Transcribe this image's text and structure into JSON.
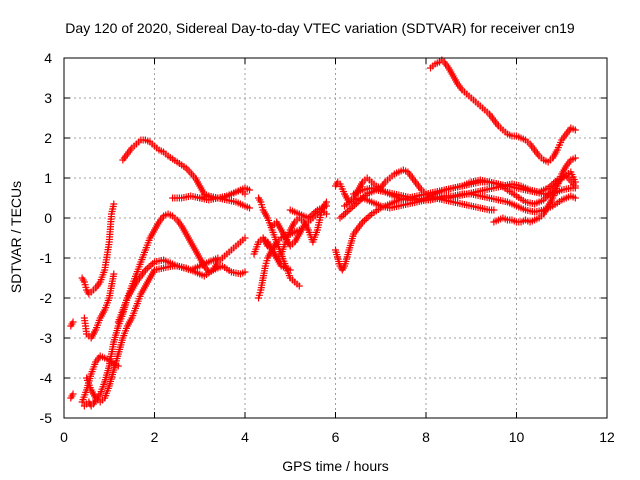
{
  "chart_data": {
    "type": "scatter",
    "title": "Day 120 of 2020, Sidereal Day-to-day VTEC variation (SDTVAR) for receiver cn19",
    "xlabel": "GPS time / hours",
    "ylabel": "SDTVAR / TECUs",
    "xlim": [
      0,
      12
    ],
    "ylim": [
      -5,
      4
    ],
    "xticks": [
      0,
      2,
      4,
      6,
      8,
      10,
      12
    ],
    "yticks": [
      -5,
      -4,
      -3,
      -2,
      -1,
      0,
      1,
      2,
      3,
      4
    ],
    "grid": true,
    "legend": "none",
    "marker": "plus",
    "color": "#ff0000",
    "series": [
      {
        "x": [
          0.15,
          0.2
        ],
        "y": [
          -2.7,
          -2.6
        ]
      },
      {
        "x": [
          0.15,
          0.2
        ],
        "y": [
          -4.5,
          -4.4
        ]
      },
      {
        "x": [
          0.4,
          0.45,
          0.5,
          0.55,
          0.6,
          0.7,
          0.8,
          0.9,
          1.0,
          1.05,
          1.1
        ],
        "y": [
          -1.5,
          -1.6,
          -1.8,
          -1.9,
          -1.85,
          -1.75,
          -1.6,
          -1.3,
          -0.6,
          0.1,
          0.35
        ]
      },
      {
        "x": [
          0.45,
          0.5,
          0.6,
          0.7,
          0.8,
          0.9,
          1.0,
          1.05,
          1.1
        ],
        "y": [
          -2.5,
          -2.9,
          -3.0,
          -2.8,
          -2.5,
          -2.3,
          -2.0,
          -1.7,
          -1.4
        ]
      },
      {
        "x": [
          0.4,
          0.5,
          0.6,
          0.7,
          0.8,
          0.9,
          1.0,
          1.05,
          1.1,
          1.2
        ],
        "y": [
          -4.6,
          -4.3,
          -3.9,
          -3.6,
          -3.45,
          -3.5,
          -3.55,
          -3.6,
          -3.65,
          -3.7
        ]
      },
      {
        "x": [
          0.45,
          0.55,
          0.6,
          0.65,
          0.7,
          0.8,
          0.9,
          1.0,
          1.1,
          1.2,
          1.3,
          1.4,
          1.5,
          1.6,
          1.8,
          2.0,
          2.2,
          2.5,
          2.8,
          3.0,
          3.2,
          3.4
        ],
        "y": [
          -4.7,
          -4.6,
          -4.7,
          -4.65,
          -4.55,
          -4.4,
          -4.1,
          -3.7,
          -3.1,
          -2.7,
          -2.4,
          -2.0,
          -1.8,
          -1.6,
          -1.3,
          -1.1,
          -1.05,
          -1.2,
          -1.3,
          -1.2,
          -1.1,
          -1.0
        ]
      },
      {
        "x": [
          0.5,
          0.6,
          0.7,
          0.8,
          0.9,
          1.0,
          1.1,
          1.2,
          1.3,
          1.4,
          1.5,
          1.6,
          1.7,
          1.8,
          1.9,
          2.0,
          2.2,
          2.4,
          2.5,
          2.7,
          2.9,
          3.1,
          3.3,
          3.5,
          3.7,
          3.9,
          4.0
        ],
        "y": [
          -4.0,
          -4.3,
          -4.5,
          -4.6,
          -4.5,
          -4.2,
          -3.8,
          -3.4,
          -3.0,
          -2.7,
          -2.5,
          -2.2,
          -1.9,
          -1.7,
          -1.5,
          -1.3,
          -1.25,
          -1.2,
          -1.2,
          -1.25,
          -1.35,
          -1.45,
          -1.3,
          -1.2,
          -1.35,
          -1.4,
          -1.35
        ]
      },
      {
        "x": [
          1.3,
          1.4,
          1.5,
          1.6,
          1.7,
          1.8,
          1.9,
          2.0,
          2.1,
          2.2,
          2.3,
          2.5,
          2.7,
          2.9,
          3.0,
          3.1,
          3.3,
          3.5,
          3.7,
          3.9,
          4.0
        ],
        "y": [
          1.45,
          1.6,
          1.75,
          1.85,
          1.95,
          1.95,
          1.9,
          1.8,
          1.7,
          1.65,
          1.55,
          1.4,
          1.25,
          1.0,
          0.8,
          0.6,
          0.5,
          0.5,
          0.6,
          0.7,
          0.6
        ]
      },
      {
        "x": [
          1.2,
          1.3,
          1.4,
          1.5,
          1.6,
          1.7,
          1.8,
          1.9,
          2.0,
          2.1,
          2.2,
          2.3,
          2.4,
          2.5,
          2.6,
          2.7,
          2.8,
          2.9,
          3.0,
          3.1,
          3.2,
          3.3,
          3.4,
          3.5,
          3.6,
          3.7,
          3.8,
          3.9,
          4.0
        ],
        "y": [
          -2.6,
          -2.3,
          -2.0,
          -1.7,
          -1.4,
          -1.1,
          -0.8,
          -0.5,
          -0.3,
          -0.1,
          0.05,
          0.1,
          0.05,
          -0.05,
          -0.2,
          -0.4,
          -0.6,
          -0.8,
          -1.0,
          -1.2,
          -1.35,
          -1.3,
          -1.1,
          -1.0,
          -0.9,
          -0.8,
          -0.7,
          -0.6,
          -0.5
        ]
      },
      {
        "x": [
          2.4,
          2.6,
          2.8,
          3.0,
          3.2,
          3.4,
          3.6,
          3.8,
          4.0,
          4.1
        ],
        "y": [
          0.5,
          0.5,
          0.55,
          0.5,
          0.45,
          0.5,
          0.55,
          0.65,
          0.75,
          0.7
        ]
      },
      {
        "x": [
          3.0,
          3.2,
          3.4,
          3.6,
          3.8,
          4.0,
          4.1
        ],
        "y": [
          0.5,
          0.55,
          0.5,
          0.45,
          0.4,
          0.3,
          0.25
        ]
      },
      {
        "x": [
          4.3,
          4.35,
          4.4,
          4.45,
          4.5,
          4.6,
          4.7,
          4.8,
          4.9,
          5.0,
          5.1,
          5.2
        ],
        "y": [
          -2.0,
          -1.8,
          -1.5,
          -1.2,
          -1.0,
          -0.8,
          -0.6,
          -0.5,
          -0.45,
          -0.4,
          -0.35,
          -0.3
        ]
      },
      {
        "x": [
          4.3,
          4.35,
          4.4,
          4.5,
          4.6,
          4.7,
          4.8,
          4.9,
          5.0,
          5.1,
          5.2
        ],
        "y": [
          0.5,
          0.4,
          0.2,
          0.0,
          -0.3,
          -0.6,
          -0.9,
          -1.2,
          -1.5,
          -1.6,
          -1.7
        ]
      },
      {
        "x": [
          4.4,
          4.5,
          4.6,
          4.7,
          4.8,
          4.9,
          5.0,
          5.1,
          5.2,
          5.3,
          5.4,
          5.5,
          5.6,
          5.7,
          5.8
        ],
        "y": [
          -0.5,
          -0.6,
          -0.8,
          -1.0,
          -0.9,
          -0.6,
          -0.3,
          -0.1,
          0.0,
          -0.1,
          -0.3,
          -0.6,
          -0.3,
          0.2,
          0.4
        ]
      },
      {
        "x": [
          4.6,
          4.7,
          4.8,
          4.9,
          5.0,
          5.1,
          5.2,
          5.3,
          5.4,
          5.5,
          5.6,
          5.7,
          5.8
        ],
        "y": [
          -0.2,
          -0.1,
          -0.3,
          -0.5,
          -0.7,
          -0.6,
          -0.4,
          -0.2,
          -0.1,
          0.0,
          0.1,
          0.2,
          0.1
        ]
      },
      {
        "x": [
          4.2,
          4.3,
          4.4,
          4.5,
          4.6,
          4.7,
          4.8,
          5.0
        ],
        "y": [
          -0.9,
          -0.6,
          -0.5,
          -0.7,
          -0.8,
          -1.0,
          -1.2,
          -1.3
        ]
      },
      {
        "x": [
          5.0,
          5.2,
          5.4,
          5.6,
          5.8
        ],
        "y": [
          0.2,
          0.1,
          0.0,
          0.2,
          0.3
        ]
      },
      {
        "x": [
          6.0,
          6.05,
          6.1,
          6.2,
          6.3,
          6.4,
          6.5,
          6.6,
          6.7,
          6.8,
          6.9,
          7.0,
          7.1,
          7.2,
          7.3,
          7.4,
          7.5,
          7.6,
          7.7,
          7.8,
          7.9,
          8.0,
          8.2,
          8.4,
          8.6,
          8.8,
          9.0,
          9.2,
          9.4,
          9.5
        ],
        "y": [
          0.8,
          0.9,
          0.85,
          0.6,
          0.4,
          0.5,
          0.7,
          0.9,
          1.0,
          0.9,
          0.8,
          0.75,
          0.9,
          1.0,
          1.1,
          1.15,
          1.2,
          1.15,
          1.0,
          0.85,
          0.7,
          0.6,
          0.5,
          0.45,
          0.4,
          0.35,
          0.3,
          0.25,
          0.2,
          0.2
        ]
      },
      {
        "x": [
          6.0,
          6.1,
          6.15,
          6.2,
          6.3,
          6.4,
          6.6,
          6.8,
          7.0,
          7.2,
          7.4,
          7.6,
          7.8,
          8.0,
          8.2,
          8.4,
          8.6,
          8.8,
          9.0,
          9.2,
          9.4,
          9.6,
          9.8,
          10.0,
          10.2,
          10.4,
          10.6,
          10.8,
          11.0,
          11.2,
          11.3
        ],
        "y": [
          -0.8,
          -1.2,
          -1.3,
          -1.2,
          -0.8,
          -0.4,
          -0.1,
          0.1,
          0.25,
          0.35,
          0.45,
          0.5,
          0.55,
          0.6,
          0.65,
          0.7,
          0.75,
          0.8,
          0.85,
          0.9,
          0.9,
          0.85,
          0.8,
          0.75,
          0.7,
          0.65,
          0.6,
          0.6,
          0.7,
          0.75,
          0.75
        ]
      },
      {
        "x": [
          6.1,
          6.3,
          6.5,
          6.7,
          6.9,
          7.1,
          7.3,
          7.5,
          7.7,
          7.9,
          8.1,
          8.3,
          8.5,
          8.7,
          8.9,
          9.1,
          9.3,
          9.5,
          9.7,
          9.9,
          10.1,
          10.3,
          10.5,
          10.7,
          10.9,
          11.1,
          11.3
        ],
        "y": [
          0.0,
          0.2,
          0.4,
          0.6,
          0.7,
          0.65,
          0.6,
          0.55,
          0.5,
          0.45,
          0.45,
          0.5,
          0.5,
          0.55,
          0.6,
          0.65,
          0.7,
          0.75,
          0.8,
          0.85,
          0.8,
          0.7,
          0.65,
          0.75,
          0.95,
          1.05,
          0.8
        ]
      },
      {
        "x": [
          6.2,
          6.4,
          6.6,
          6.8,
          7.0,
          7.2,
          7.4,
          7.6,
          7.8,
          8.0,
          8.2,
          8.4,
          8.6,
          8.8,
          9.0,
          9.2,
          9.4,
          9.6,
          9.8,
          10.0,
          10.2,
          10.4,
          10.6,
          10.8,
          11.0,
          11.2,
          11.3
        ],
        "y": [
          0.3,
          0.45,
          0.5,
          0.4,
          0.3,
          0.25,
          0.3,
          0.35,
          0.4,
          0.45,
          0.5,
          0.55,
          0.55,
          0.6,
          0.6,
          0.55,
          0.5,
          0.45,
          0.4,
          0.3,
          0.2,
          0.15,
          0.2,
          0.3,
          0.45,
          0.55,
          0.5
        ]
      },
      {
        "x": [
          6.4,
          6.6,
          6.8,
          7.0,
          7.2,
          7.4,
          7.6,
          7.8,
          8.0,
          8.2,
          8.4,
          8.6,
          8.8,
          9.0,
          9.2,
          9.4,
          9.6,
          9.8,
          10.0,
          10.2,
          10.4,
          10.6,
          10.8,
          11.0,
          11.2,
          11.3
        ],
        "y": [
          0.6,
          0.7,
          0.75,
          0.7,
          0.6,
          0.5,
          0.45,
          0.45,
          0.5,
          0.6,
          0.7,
          0.75,
          0.8,
          0.9,
          0.95,
          0.9,
          0.85,
          0.7,
          0.55,
          0.4,
          0.35,
          0.45,
          0.7,
          1.0,
          1.15,
          0.9
        ]
      },
      {
        "x": [
          8.1,
          8.2,
          8.3,
          8.35,
          8.4,
          8.5,
          8.6,
          8.7,
          8.8,
          8.9,
          9.0,
          9.1,
          9.2,
          9.3,
          9.4,
          9.5,
          9.6,
          9.7,
          9.8,
          9.9,
          10.0,
          10.1,
          10.2,
          10.3,
          10.4,
          10.5,
          10.6,
          10.7,
          10.8,
          10.9,
          11.0,
          11.1,
          11.2,
          11.3
        ],
        "y": [
          3.75,
          3.85,
          3.9,
          3.95,
          3.9,
          3.75,
          3.55,
          3.35,
          3.2,
          3.1,
          3.0,
          2.9,
          2.8,
          2.7,
          2.6,
          2.45,
          2.3,
          2.2,
          2.1,
          2.05,
          2.05,
          2.0,
          1.95,
          1.85,
          1.7,
          1.55,
          1.45,
          1.4,
          1.5,
          1.7,
          1.95,
          2.1,
          2.25,
          2.2
        ]
      },
      {
        "x": [
          9.5,
          9.6,
          9.7,
          9.8,
          9.9,
          10.0,
          10.1,
          10.2,
          10.3,
          10.4,
          10.5,
          10.6,
          10.7,
          10.8,
          10.9,
          11.0,
          11.1,
          11.2,
          11.3
        ],
        "y": [
          -0.1,
          -0.05,
          0.0,
          -0.05,
          -0.05,
          -0.1,
          -0.1,
          -0.05,
          -0.1,
          -0.05,
          0.0,
          0.1,
          0.3,
          0.5,
          0.8,
          1.1,
          1.3,
          1.45,
          1.5
        ]
      }
    ]
  }
}
